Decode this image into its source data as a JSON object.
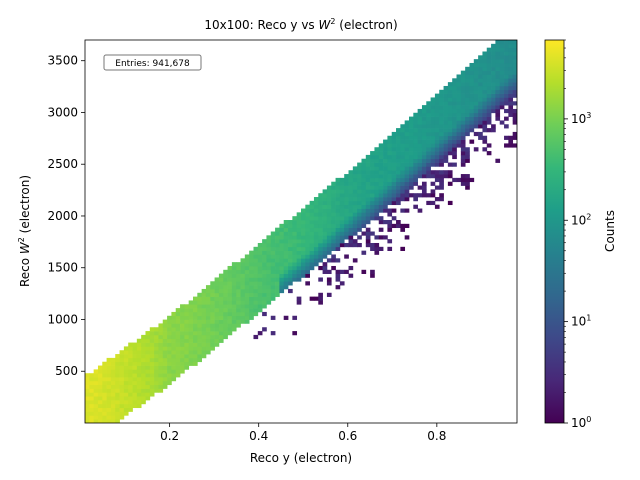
{
  "chart_data": {
    "type": "heatmap",
    "title": "10x100: Reco y vs W² (electron)",
    "title_parts": {
      "prefix": "10x100: Reco y vs ",
      "var": "W",
      "sup": "2",
      "suffix": " (electron)"
    },
    "xlabel": "Reco y (electron)",
    "ylabel": "Reco W² (electron)",
    "ylabel_parts": {
      "prefix": "Reco ",
      "var": "W",
      "sup": "2",
      "suffix": " (electron)"
    },
    "xlim": [
      0.01,
      0.98
    ],
    "ylim": [
      0,
      3700
    ],
    "x_ticks": [
      0.2,
      0.4,
      0.6,
      0.8
    ],
    "x_tick_labels": [
      "0.2",
      "0.4",
      "0.6",
      "0.8"
    ],
    "y_ticks": [
      500,
      1000,
      1500,
      2000,
      2500,
      3000,
      3500
    ],
    "y_tick_labels": [
      "500",
      "1000",
      "1500",
      "2000",
      "2500",
      "3000",
      "3500"
    ],
    "annotation": "Entries: 941,678",
    "annotation_position": "top-left",
    "bins": {
      "nx": 100,
      "ny": 100
    },
    "band": {
      "description": "dense diagonal band of counts",
      "W2_center_at_x": [
        [
          0.01,
          120
        ],
        [
          0.2,
          700
        ],
        [
          0.4,
          1400
        ],
        [
          0.6,
          2100
        ],
        [
          0.8,
          2850
        ],
        [
          0.97,
          3500
        ]
      ],
      "half_width_W2": 330,
      "peak_counts_at_x": [
        [
          0.02,
          4000
        ],
        [
          0.2,
          1300
        ],
        [
          0.4,
          500
        ],
        [
          0.6,
          170
        ],
        [
          0.8,
          100
        ],
        [
          0.97,
          70
        ]
      ]
    },
    "colorbar": {
      "label": "Counts",
      "scale": "log",
      "range": [
        1,
        6000
      ],
      "ticks": [
        1,
        10,
        100,
        1000
      ],
      "tick_labels": [
        {
          "base": "10",
          "exp": "0"
        },
        {
          "base": "10",
          "exp": "1"
        },
        {
          "base": "10",
          "exp": "2"
        },
        {
          "base": "10",
          "exp": "3"
        }
      ],
      "colormap": "viridis"
    },
    "colormap_stops": [
      "#440154",
      "#482878",
      "#3e4989",
      "#31688e",
      "#26828e",
      "#1f9e89",
      "#35b779",
      "#6ece58",
      "#b5de2b",
      "#fde725"
    ]
  }
}
